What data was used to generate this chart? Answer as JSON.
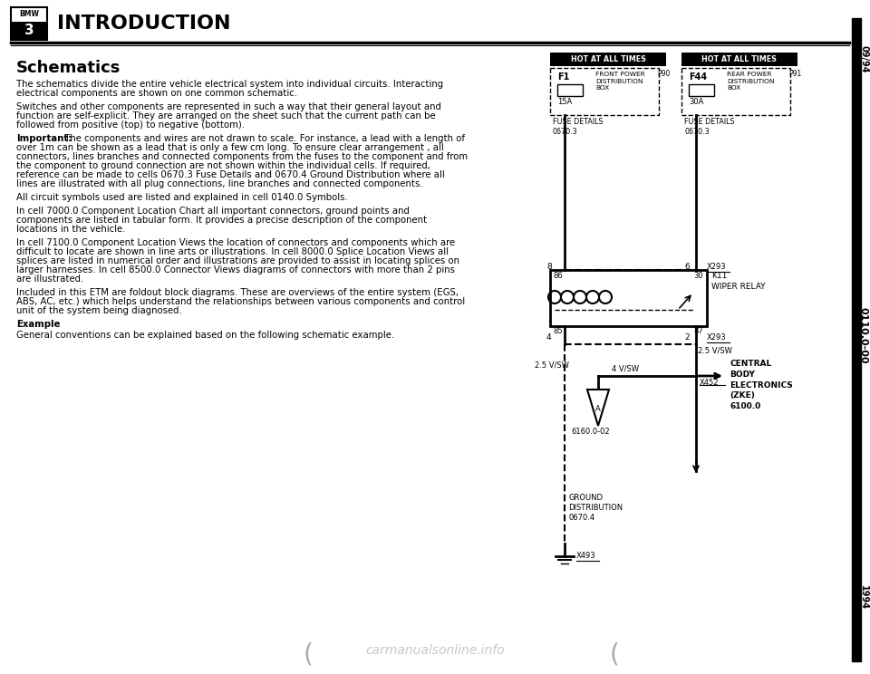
{
  "bg_color": "#ffffff",
  "title": "INTRODUCTION",
  "section_title": "Schematics",
  "right_margin_top": "09/94",
  "right_margin_mid": "0110.0-00",
  "right_margin_bot": "1994",
  "watermark": "carmanualsonline.info",
  "para1": "The schematics divide the entire vehicle electrical system into individual circuits. Interacting\nelectrical components are shown on one common schematic.",
  "para2": "Switches and other components are represented in such a way that their general layout and\nfunction are self-explicit. They are arranged on the sheet such that the current path can be\nfollowed from positive (top) to negative (bottom).",
  "para3_bold": "Important:",
  "para3_rest": " The components and wires are not drawn to scale. For instance, a lead with a length of\nover 1m can be shown as a lead that is only a few cm long. To ensure clear arrangement , all\nconnectors, lines branches and connected components from the fuses to the component and from\nthe component to ground connection are not shown within the individual cells. If required,\nreference can be made to cells 0670.3 Fuse Details and 0670.4 Ground Distribution where all\nlines are illustrated with all plug connections, line branches and connected components.",
  "para4": "All circuit symbols used are listed and explained in cell 0140.0 Symbols.",
  "para5": "In cell 7000.0 Component Location Chart all important connectors, ground points and\ncomponents are listed in tabular form. It provides a precise description of the component\nlocations in the vehicle.",
  "para6": "In cell 7100.0 Component Location Views the location of connectors and components which are\ndifficult to locate are shown in line arts or illustrations. In cell 8000.0 Splice Location Views all\nsplices are listed in numerical order and illustrations are provided to assist in locating splices on\nlarger harnesses. In cell 8500.0 Connector Views diagrams of connectors with more than 2 pins\nare illustrated.",
  "para7": "Included in this ETM are foldout block diagrams. These are overviews of the entire system (EGS,\nABS, AC, etc.) which helps understand the relationships between various components and control\nunit of the system being diagnosed.",
  "example_label": "Example",
  "example_text": "General conventions can be explained based on the following schematic example.",
  "diag": {
    "hot1_label": "HOT AT ALL TIMES",
    "hot2_label": "HOT AT ALL TIMES",
    "p90": "P90",
    "f1_code": "F1",
    "f1_amp": "15A",
    "f1_name": "FRONT POWER\nDISTRIBUTION\nBOX",
    "p91": "P91",
    "f44_code": "F44",
    "f44_amp": "30A",
    "f44_name": "REAR POWER\nDISTRIBUTION\nBOX",
    "fuse_det1": "FUSE DETAILS\n0670.3",
    "fuse_det2": "FUSE DETAILS\n0670.3",
    "pin8": "8",
    "pin6": "6",
    "pin86": "86",
    "pin30": "30",
    "pin85": "85",
    "pin87": "87",
    "pin4": "4",
    "pin2": "2",
    "x293a": "X293",
    "x293b": "X293",
    "x452": "X452",
    "x493": "X493",
    "k11": "K11\nWIPER RELAY",
    "wire_25vsw_a": "2.5 V/SW",
    "wire_25vsw_b": "2.5 V/SW",
    "wire_4vsw": "4 V/SW",
    "motor_ref": "6160.0-02",
    "central_body": "CENTRAL\nBODY\nELECTRONICS\n(ZKE)\n6100.0",
    "ground_dist": "GROUND\nDISTRIBUTION\n0670.4"
  }
}
